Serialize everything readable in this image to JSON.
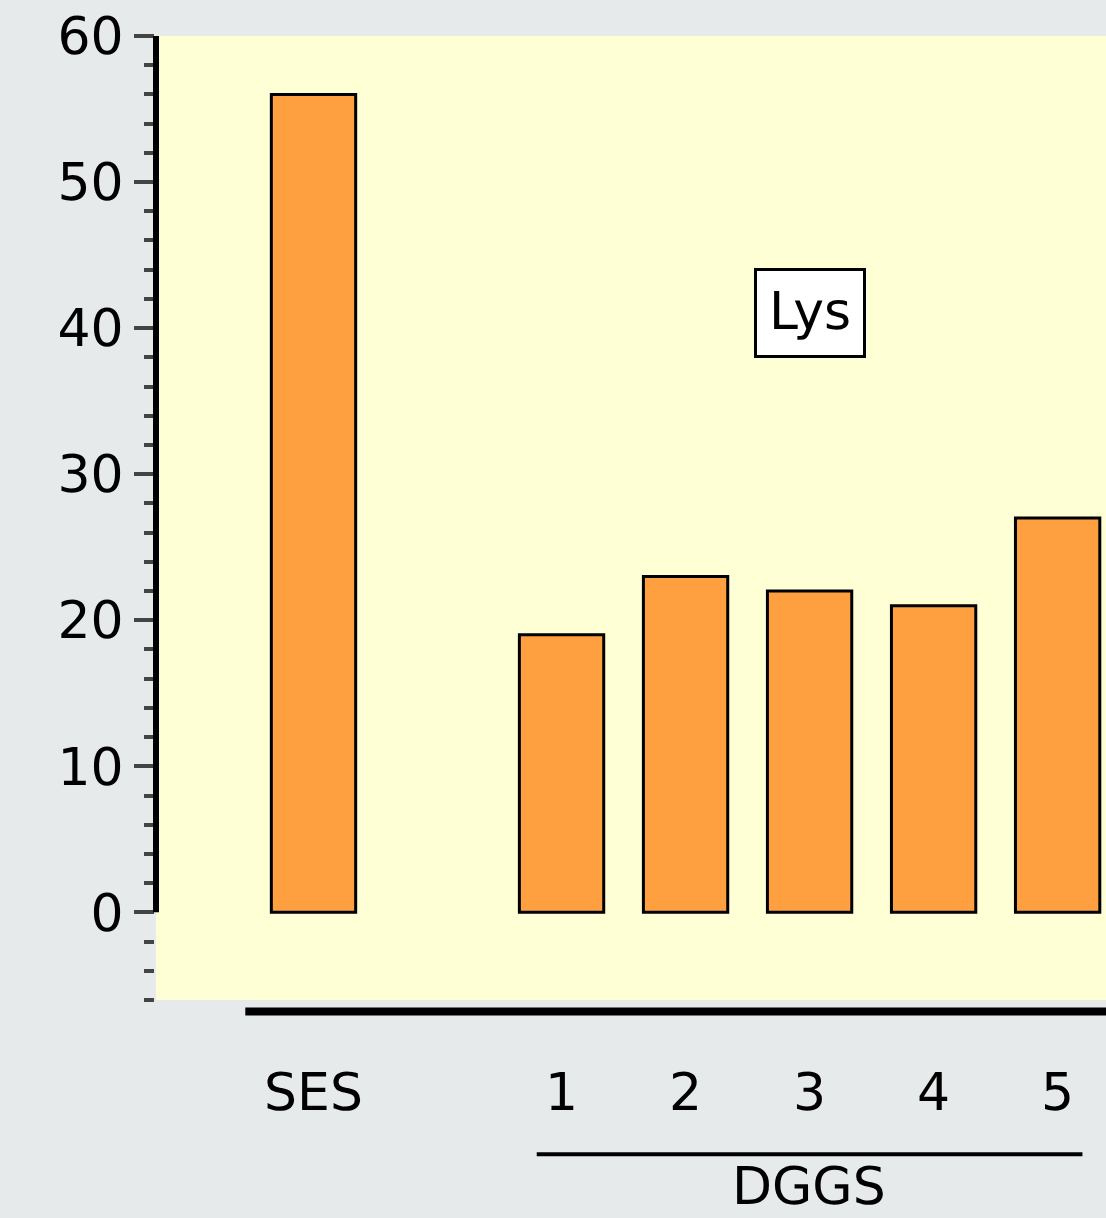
{
  "chart_data": {
    "type": "bar",
    "categories": [
      "SES",
      null,
      "1",
      "2",
      "3",
      "4",
      "5"
    ],
    "values": [
      56,
      null,
      19,
      23,
      22,
      21,
      27
    ],
    "color": "#ffa040",
    "ylim": [
      -6,
      60
    ],
    "yticks": [
      0,
      10,
      20,
      30,
      40,
      50,
      60
    ],
    "grid": false,
    "legend": false,
    "annotations": [
      "Lys",
      "DGGS"
    ]
  }
}
